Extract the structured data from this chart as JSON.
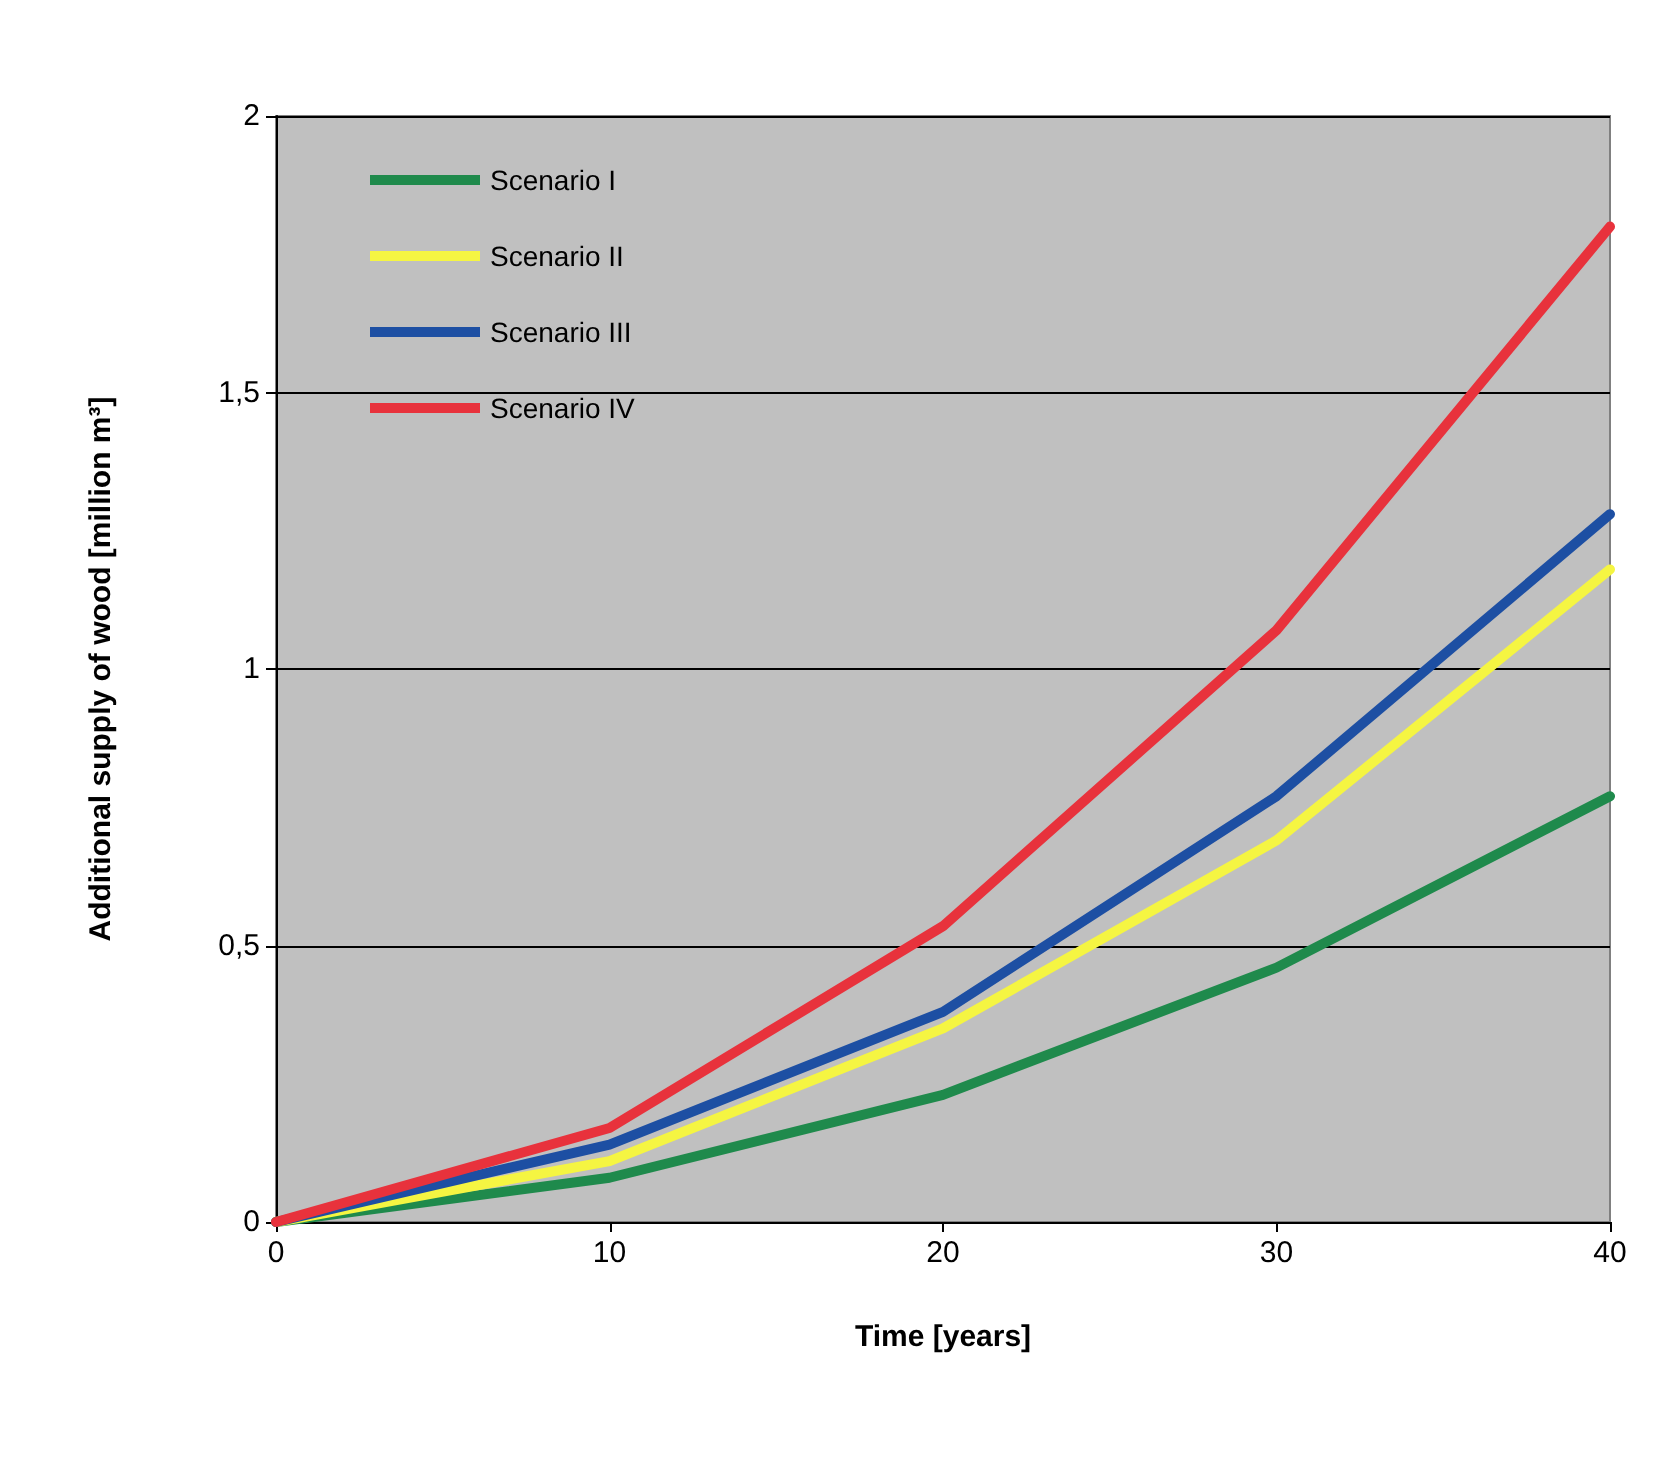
{
  "chart_data": {
    "type": "line",
    "xlabel": "Time [years]",
    "ylabel": "Additional supply of wood [million m³]",
    "x": [
      0,
      10,
      20,
      30,
      40
    ],
    "series": [
      {
        "name": "Scenario I",
        "color": "#1f8a4c",
        "values": [
          0,
          0.08,
          0.23,
          0.46,
          0.77
        ]
      },
      {
        "name": "Scenario II",
        "color": "#f5f542",
        "values": [
          0,
          0.11,
          0.35,
          0.69,
          1.18
        ]
      },
      {
        "name": "Scenario III",
        "color": "#1d4fa3",
        "values": [
          0,
          0.14,
          0.38,
          0.77,
          1.28
        ]
      },
      {
        "name": "Scenario IV",
        "color": "#e8323c",
        "values": [
          0,
          0.17,
          0.535,
          1.07,
          1.8
        ]
      }
    ],
    "xlim": [
      0,
      40
    ],
    "xticks": [
      0,
      10,
      20,
      30,
      40
    ],
    "ylim": [
      0,
      2
    ],
    "yticks": [
      0,
      {
        "value": 0.5,
        "label": "0,5"
      },
      1,
      {
        "value": 1.5,
        "label": "1,5"
      },
      2
    ],
    "grid": "y",
    "legend": "top left",
    "marker": "none",
    "line_style": "solid"
  }
}
